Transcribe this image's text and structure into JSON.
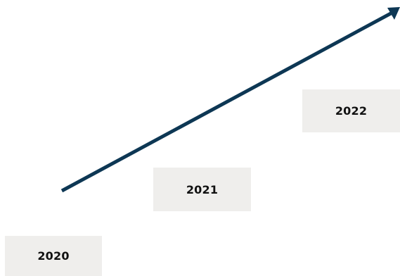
{
  "steps": [
    {
      "label": "2020"
    },
    {
      "label": "2021"
    },
    {
      "label": "2022"
    }
  ],
  "colors": {
    "arrow": "#0d3754",
    "box_fill": "#efeeec",
    "text": "#111111",
    "background": "#ffffff"
  }
}
